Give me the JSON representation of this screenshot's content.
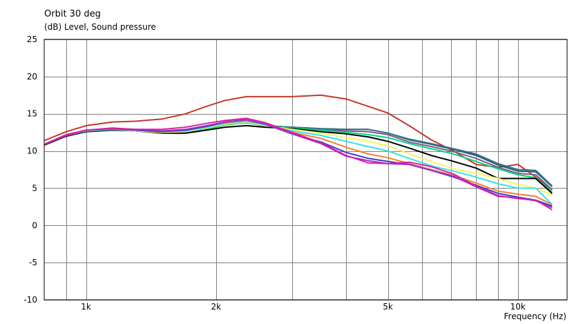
{
  "chart_data": {
    "type": "line",
    "title": "Orbit 30 deg",
    "ylabel": "(dB)  Level, Sound pressure",
    "xlabel": "Frequency  (Hz)",
    "x_scale": "log",
    "xlim": [
      800,
      13000
    ],
    "ylim": [
      -10,
      25
    ],
    "grid": true,
    "y_ticks": [
      25,
      20,
      15,
      10,
      5,
      0,
      -5,
      -10
    ],
    "x_tick_labels": [
      {
        "value": 1000,
        "label": "1k"
      },
      {
        "value": 2000,
        "label": "2k"
      },
      {
        "value": 5000,
        "label": "5k"
      },
      {
        "value": 10000,
        "label": "10k"
      }
    ],
    "x_gridlines": [
      900,
      1000,
      2000,
      3000,
      4000,
      5000,
      6000,
      7000,
      8000,
      9000,
      10000
    ],
    "x": [
      800,
      900,
      1000,
      1150,
      1300,
      1500,
      1700,
      1900,
      2100,
      2350,
      2600,
      3000,
      3500,
      4000,
      4500,
      5000,
      5600,
      6300,
      7100,
      8000,
      9000,
      10000,
      11000,
      12000
    ],
    "series": [
      {
        "color": "#c0392b",
        "values": [
          11.4,
          12.6,
          13.4,
          13.9,
          14.0,
          14.3,
          15.0,
          16.0,
          16.8,
          17.3,
          17.3,
          17.3,
          17.5,
          17.0,
          16.0,
          15.1,
          13.4,
          11.5,
          10.0,
          8.2,
          7.8,
          8.2,
          6.5,
          4.8
        ]
      },
      {
        "color": "#1f5f6e",
        "values": [
          10.8,
          12.0,
          12.6,
          12.9,
          12.7,
          12.5,
          12.6,
          13.1,
          13.6,
          13.8,
          13.4,
          13.2,
          13.0,
          12.9,
          12.9,
          12.4,
          11.5,
          10.9,
          10.2,
          9.4,
          8.1,
          7.3,
          7.2,
          5.2
        ]
      },
      {
        "color": "#7a5a8a",
        "values": [
          10.8,
          12.0,
          12.6,
          12.9,
          12.7,
          12.5,
          12.6,
          13.1,
          13.6,
          13.8,
          13.4,
          13.1,
          12.9,
          12.7,
          12.6,
          12.2,
          11.2,
          10.6,
          9.9,
          9.0,
          7.8,
          7.0,
          6.8,
          4.8
        ]
      },
      {
        "color": "#3c6e8c",
        "values": [
          10.8,
          12.0,
          12.6,
          12.9,
          12.7,
          12.5,
          12.6,
          13.1,
          13.6,
          13.8,
          13.4,
          13.2,
          13.0,
          12.9,
          12.9,
          12.4,
          11.6,
          11.0,
          10.3,
          9.6,
          8.3,
          7.5,
          7.4,
          5.3
        ]
      },
      {
        "color": "#00d87a",
        "values": [
          10.9,
          12.2,
          12.7,
          12.9,
          12.8,
          12.4,
          12.4,
          12.9,
          13.5,
          13.8,
          13.4,
          13.1,
          12.8,
          12.5,
          12.2,
          11.8,
          11.0,
          10.3,
          9.6,
          8.6,
          7.6,
          6.8,
          6.4,
          4.5
        ]
      },
      {
        "color": "#000000",
        "values": [
          10.8,
          12.0,
          12.6,
          12.8,
          12.7,
          12.4,
          12.4,
          12.8,
          13.2,
          13.4,
          13.2,
          13.0,
          12.6,
          12.3,
          11.9,
          11.3,
          10.4,
          9.4,
          8.6,
          7.7,
          6.3,
          6.3,
          6.3,
          4.3
        ]
      },
      {
        "color": "#f4f464",
        "values": [
          10.9,
          12.1,
          12.7,
          12.9,
          12.7,
          12.5,
          12.6,
          13.1,
          13.6,
          13.9,
          13.4,
          12.9,
          12.4,
          11.8,
          11.3,
          10.7,
          9.6,
          8.6,
          7.6,
          7.0,
          6.3,
          5.5,
          5.0,
          4.1
        ]
      },
      {
        "color": "#33e0ee",
        "values": [
          10.9,
          12.1,
          12.7,
          12.9,
          12.8,
          12.6,
          12.7,
          13.2,
          13.7,
          14.0,
          13.5,
          12.7,
          12.1,
          11.3,
          10.6,
          10.0,
          9.0,
          8.0,
          7.3,
          6.5,
          5.6,
          5.0,
          5.0,
          2.8
        ]
      },
      {
        "color": "#f0822d",
        "values": [
          10.9,
          12.1,
          12.8,
          13.0,
          12.8,
          12.6,
          12.8,
          13.3,
          13.8,
          14.1,
          13.6,
          12.5,
          11.7,
          10.5,
          9.6,
          9.1,
          8.3,
          7.5,
          6.7,
          5.7,
          4.6,
          4.2,
          3.9,
          2.8
        ]
      },
      {
        "color": "#3a3ad6",
        "values": [
          10.9,
          12.1,
          12.8,
          13.0,
          12.8,
          12.6,
          12.8,
          13.3,
          13.9,
          14.2,
          13.6,
          12.3,
          11.2,
          9.8,
          9.0,
          8.6,
          8.2,
          7.4,
          6.5,
          5.4,
          4.3,
          3.8,
          3.4,
          2.6
        ]
      },
      {
        "color": "#9b30d0",
        "values": [
          10.9,
          12.1,
          12.8,
          13.0,
          12.9,
          12.7,
          12.9,
          13.4,
          13.9,
          14.2,
          13.6,
          12.3,
          11.0,
          9.3,
          8.7,
          8.3,
          8.2,
          7.4,
          6.6,
          5.2,
          3.9,
          3.7,
          3.3,
          2.4
        ]
      },
      {
        "color": "#e01ca0",
        "values": [
          10.9,
          12.2,
          12.8,
          13.1,
          12.9,
          12.9,
          13.2,
          13.7,
          14.1,
          14.4,
          13.8,
          12.5,
          11.1,
          9.4,
          8.4,
          8.3,
          8.5,
          7.9,
          6.9,
          5.3,
          4.0,
          3.6,
          3.4,
          2.1
        ]
      }
    ]
  }
}
